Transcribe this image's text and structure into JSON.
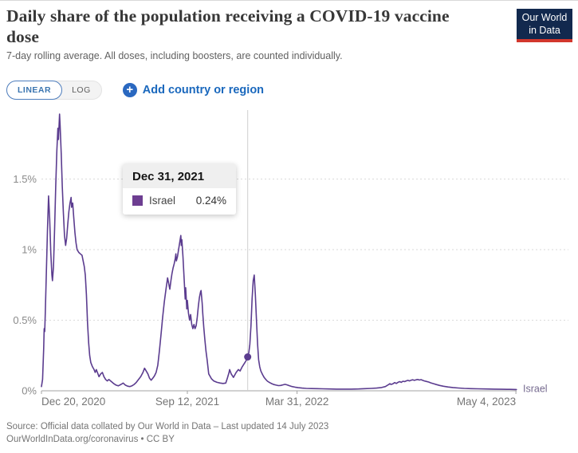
{
  "header": {
    "title": "Daily share of the population receiving a COVID-19 vaccine dose",
    "subtitle": "7-day rolling average. All doses, including boosters, are counted individually.",
    "logo_line1": "Our World",
    "logo_line2": "in Data"
  },
  "controls": {
    "linear_label": "LINEAR",
    "log_label": "LOG",
    "add_country_label": "Add country or region"
  },
  "tooltip": {
    "date": "Dec 31, 2021",
    "entity": "Israel",
    "value": "0.24%",
    "swatch_color": "#6d3e91"
  },
  "footer": {
    "source": "Source: Official data collated by Our World in Data – Last updated 14 July 2023",
    "links": "OurWorldInData.org/coronavirus • CC BY"
  },
  "colors": {
    "series_line": "#5b3c8f",
    "series_label": "#756a8f",
    "accent_blue": "#1a68bd",
    "logo_bg": "#12294e",
    "logo_red": "#d2372d"
  },
  "chart_data": {
    "type": "line",
    "title": "Daily share of the population receiving a COVID-19 vaccine dose",
    "ylabel": "",
    "xlabel": "",
    "grid": "dashed-horizontal",
    "legend_position": "line-end-label",
    "x_axis": {
      "unit": "days since Dec 20, 2020",
      "ticks": [
        {
          "day": 0,
          "label": "Dec 20, 2020",
          "anchor": "start"
        },
        {
          "day": 266,
          "label": "Sep 12, 2021",
          "anchor": "middle"
        },
        {
          "day": 466,
          "label": "Mar 31, 2022",
          "anchor": "middle"
        },
        {
          "day": 865,
          "label": "May 4, 2023",
          "anchor": "end"
        }
      ]
    },
    "y_axis": {
      "min": 0,
      "max": 2.0,
      "ticks": [
        {
          "value": 0,
          "label": "0%"
        },
        {
          "value": 0.5,
          "label": "0.5%"
        },
        {
          "value": 1,
          "label": "1%"
        },
        {
          "value": 1.5,
          "label": "1.5%"
        }
      ]
    },
    "hover": {
      "day": 376,
      "date": "Dec 31, 2021",
      "value_pct": 0.24
    },
    "series": [
      {
        "name": "Israel",
        "color": "#5b3c8f",
        "label_color": "#756a8f",
        "points": [
          [
            0,
            0.03
          ],
          [
            2,
            0.08
          ],
          [
            4,
            0.3
          ],
          [
            5,
            0.44
          ],
          [
            6,
            0.42
          ],
          [
            7,
            0.55
          ],
          [
            9,
            0.85
          ],
          [
            11,
            1.15
          ],
          [
            13,
            1.38
          ],
          [
            15,
            1.22
          ],
          [
            17,
            0.98
          ],
          [
            19,
            0.82
          ],
          [
            20,
            0.78
          ],
          [
            22,
            0.88
          ],
          [
            24,
            1.15
          ],
          [
            26,
            1.45
          ],
          [
            28,
            1.7
          ],
          [
            30,
            1.86
          ],
          [
            31,
            1.78
          ],
          [
            33,
            1.96
          ],
          [
            34,
            1.88
          ],
          [
            36,
            1.68
          ],
          [
            38,
            1.45
          ],
          [
            40,
            1.26
          ],
          [
            42,
            1.1
          ],
          [
            44,
            1.03
          ],
          [
            46,
            1.08
          ],
          [
            48,
            1.18
          ],
          [
            50,
            1.27
          ],
          [
            52,
            1.33
          ],
          [
            54,
            1.37
          ],
          [
            55,
            1.3
          ],
          [
            57,
            1.33
          ],
          [
            59,
            1.22
          ],
          [
            61,
            1.12
          ],
          [
            63,
            1.05
          ],
          [
            65,
            1.0
          ],
          [
            68,
            0.98
          ],
          [
            71,
            0.97
          ],
          [
            74,
            0.96
          ],
          [
            76,
            0.92
          ],
          [
            78,
            0.88
          ],
          [
            80,
            0.82
          ],
          [
            82,
            0.68
          ],
          [
            84,
            0.48
          ],
          [
            86,
            0.34
          ],
          [
            88,
            0.25
          ],
          [
            90,
            0.2
          ],
          [
            93,
            0.17
          ],
          [
            96,
            0.15
          ],
          [
            98,
            0.13
          ],
          [
            100,
            0.15
          ],
          [
            102,
            0.13
          ],
          [
            105,
            0.1
          ],
          [
            108,
            0.12
          ],
          [
            111,
            0.13
          ],
          [
            114,
            0.1
          ],
          [
            117,
            0.08
          ],
          [
            120,
            0.07
          ],
          [
            123,
            0.08
          ],
          [
            126,
            0.07
          ],
          [
            129,
            0.06
          ],
          [
            132,
            0.05
          ],
          [
            136,
            0.04
          ],
          [
            140,
            0.035
          ],
          [
            145,
            0.045
          ],
          [
            149,
            0.055
          ],
          [
            153,
            0.04
          ],
          [
            157,
            0.033
          ],
          [
            161,
            0.03
          ],
          [
            165,
            0.035
          ],
          [
            169,
            0.045
          ],
          [
            173,
            0.06
          ],
          [
            177,
            0.08
          ],
          [
            181,
            0.1
          ],
          [
            185,
            0.13
          ],
          [
            188,
            0.16
          ],
          [
            191,
            0.14
          ],
          [
            194,
            0.12
          ],
          [
            197,
            0.09
          ],
          [
            200,
            0.075
          ],
          [
            203,
            0.09
          ],
          [
            206,
            0.105
          ],
          [
            209,
            0.13
          ],
          [
            212,
            0.18
          ],
          [
            215,
            0.28
          ],
          [
            218,
            0.4
          ],
          [
            221,
            0.52
          ],
          [
            224,
            0.63
          ],
          [
            227,
            0.72
          ],
          [
            230,
            0.8
          ],
          [
            232,
            0.76
          ],
          [
            234,
            0.72
          ],
          [
            236,
            0.78
          ],
          [
            238,
            0.83
          ],
          [
            240,
            0.87
          ],
          [
            242,
            0.9
          ],
          [
            244,
            0.94
          ],
          [
            245,
            0.97
          ],
          [
            246,
            0.92
          ],
          [
            248,
            0.95
          ],
          [
            250,
            1.0
          ],
          [
            252,
            1.05
          ],
          [
            254,
            1.1
          ],
          [
            255,
            1.03
          ],
          [
            256,
            1.07
          ],
          [
            258,
            0.95
          ],
          [
            260,
            0.8
          ],
          [
            262,
            0.65
          ],
          [
            263,
            0.73
          ],
          [
            265,
            0.58
          ],
          [
            266,
            0.64
          ],
          [
            268,
            0.55
          ],
          [
            270,
            0.5
          ],
          [
            272,
            0.54
          ],
          [
            274,
            0.47
          ],
          [
            276,
            0.44
          ],
          [
            278,
            0.47
          ],
          [
            280,
            0.44
          ],
          [
            282,
            0.46
          ],
          [
            284,
            0.52
          ],
          [
            286,
            0.6
          ],
          [
            288,
            0.66
          ],
          [
            290,
            0.7
          ],
          [
            291,
            0.71
          ],
          [
            293,
            0.62
          ],
          [
            294,
            0.55
          ],
          [
            296,
            0.45
          ],
          [
            298,
            0.36
          ],
          [
            300,
            0.28
          ],
          [
            302,
            0.22
          ],
          [
            305,
            0.12
          ],
          [
            310,
            0.085
          ],
          [
            314,
            0.07
          ],
          [
            320,
            0.06
          ],
          [
            326,
            0.055
          ],
          [
            331,
            0.052
          ],
          [
            336,
            0.055
          ],
          [
            339,
            0.09
          ],
          [
            342,
            0.13
          ],
          [
            343,
            0.15
          ],
          [
            346,
            0.12
          ],
          [
            350,
            0.095
          ],
          [
            355,
            0.13
          ],
          [
            359,
            0.15
          ],
          [
            362,
            0.14
          ],
          [
            366,
            0.17
          ],
          [
            371,
            0.2
          ],
          [
            374,
            0.22
          ],
          [
            376,
            0.24
          ],
          [
            378,
            0.27
          ],
          [
            380,
            0.33
          ],
          [
            382,
            0.46
          ],
          [
            384,
            0.65
          ],
          [
            386,
            0.78
          ],
          [
            388,
            0.82
          ],
          [
            389,
            0.75
          ],
          [
            390,
            0.68
          ],
          [
            392,
            0.5
          ],
          [
            394,
            0.33
          ],
          [
            396,
            0.22
          ],
          [
            398,
            0.17
          ],
          [
            400,
            0.14
          ],
          [
            403,
            0.115
          ],
          [
            406,
            0.095
          ],
          [
            409,
            0.08
          ],
          [
            412,
            0.068
          ],
          [
            416,
            0.058
          ],
          [
            420,
            0.05
          ],
          [
            424,
            0.044
          ],
          [
            428,
            0.04
          ],
          [
            432,
            0.037
          ],
          [
            436,
            0.038
          ],
          [
            440,
            0.042
          ],
          [
            444,
            0.046
          ],
          [
            448,
            0.042
          ],
          [
            452,
            0.036
          ],
          [
            457,
            0.03
          ],
          [
            462,
            0.026
          ],
          [
            468,
            0.022
          ],
          [
            475,
            0.019
          ],
          [
            483,
            0.017
          ],
          [
            492,
            0.016
          ],
          [
            502,
            0.015
          ],
          [
            513,
            0.014
          ],
          [
            525,
            0.013
          ],
          [
            538,
            0.012
          ],
          [
            551,
            0.012
          ],
          [
            565,
            0.012
          ],
          [
            578,
            0.013
          ],
          [
            590,
            0.015
          ],
          [
            601,
            0.017
          ],
          [
            611,
            0.019
          ],
          [
            620,
            0.023
          ],
          [
            627,
            0.03
          ],
          [
            632,
            0.042
          ],
          [
            635,
            0.05
          ],
          [
            638,
            0.045
          ],
          [
            641,
            0.05
          ],
          [
            644,
            0.058
          ],
          [
            647,
            0.052
          ],
          [
            650,
            0.06
          ],
          [
            653,
            0.065
          ],
          [
            656,
            0.06
          ],
          [
            659,
            0.068
          ],
          [
            662,
            0.065
          ],
          [
            665,
            0.07
          ],
          [
            668,
            0.074
          ],
          [
            671,
            0.07
          ],
          [
            674,
            0.075
          ],
          [
            677,
            0.078
          ],
          [
            680,
            0.074
          ],
          [
            683,
            0.078
          ],
          [
            686,
            0.08
          ],
          [
            689,
            0.076
          ],
          [
            692,
            0.079
          ],
          [
            695,
            0.074
          ],
          [
            698,
            0.07
          ],
          [
            702,
            0.066
          ],
          [
            706,
            0.062
          ],
          [
            710,
            0.056
          ],
          [
            715,
            0.05
          ],
          [
            720,
            0.044
          ],
          [
            726,
            0.038
          ],
          [
            733,
            0.032
          ],
          [
            741,
            0.027
          ],
          [
            750,
            0.023
          ],
          [
            760,
            0.02
          ],
          [
            771,
            0.017
          ],
          [
            783,
            0.015
          ],
          [
            796,
            0.014
          ],
          [
            810,
            0.013
          ],
          [
            825,
            0.012
          ],
          [
            840,
            0.011
          ],
          [
            854,
            0.01
          ],
          [
            866,
            0.009
          ]
        ]
      }
    ]
  }
}
